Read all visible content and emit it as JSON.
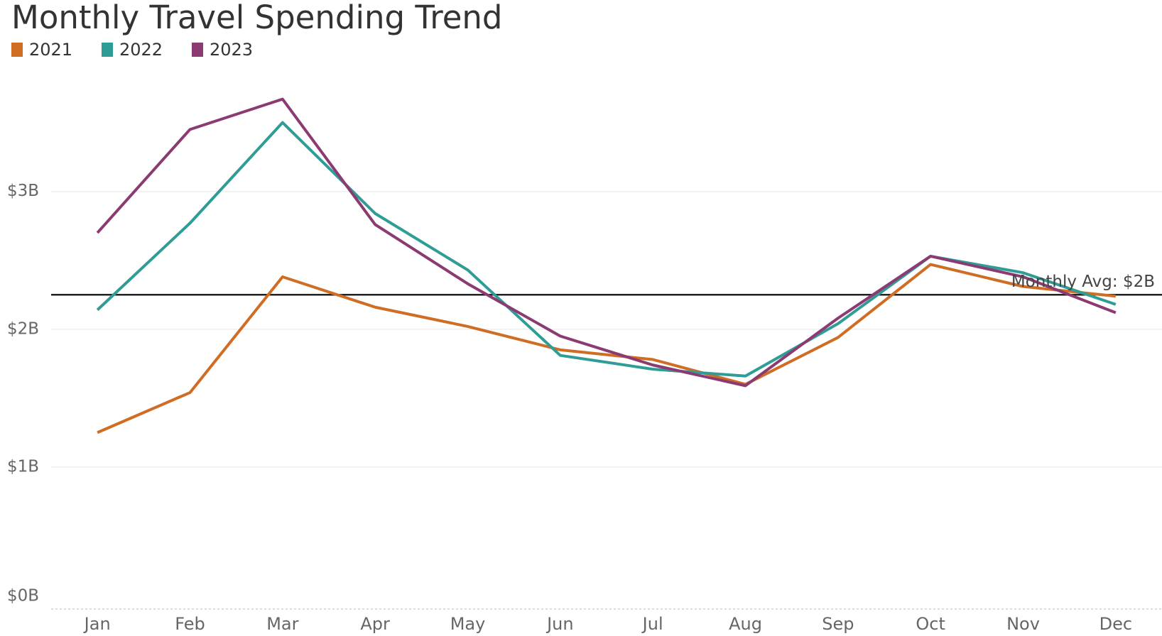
{
  "chart_data": {
    "type": "line",
    "title": "Monthly Travel Spending Trend",
    "categories": [
      "Jan",
      "Feb",
      "Mar",
      "Apr",
      "May",
      "Jun",
      "Jul",
      "Aug",
      "Sep",
      "Oct",
      "Nov",
      "Dec"
    ],
    "series": [
      {
        "name": "2021",
        "color": "#cf6d24",
        "values": [
          1.25,
          1.54,
          2.38,
          2.16,
          2.02,
          1.85,
          1.78,
          1.6,
          1.94,
          2.47,
          2.31,
          2.24
        ]
      },
      {
        "name": "2022",
        "color": "#2f9c95",
        "values": [
          2.14,
          2.77,
          3.5,
          2.84,
          2.43,
          1.81,
          1.71,
          1.66,
          2.04,
          2.53,
          2.41,
          2.18
        ]
      },
      {
        "name": "2023",
        "color": "#8b3a72",
        "values": [
          2.7,
          3.45,
          3.67,
          2.76,
          2.33,
          1.95,
          1.74,
          1.59,
          2.08,
          2.53,
          2.38,
          2.12
        ]
      }
    ],
    "ylim": [
      0,
      3.9
    ],
    "yticks": [
      {
        "value": 0,
        "label": "$0B"
      },
      {
        "value": 1,
        "label": "$1B"
      },
      {
        "value": 2,
        "label": "$2B"
      },
      {
        "value": 3,
        "label": "$3B"
      }
    ],
    "grid": true,
    "reference_line": {
      "value": 2.25,
      "label": "Monthly Avg: $2B",
      "color": "#222222"
    }
  }
}
